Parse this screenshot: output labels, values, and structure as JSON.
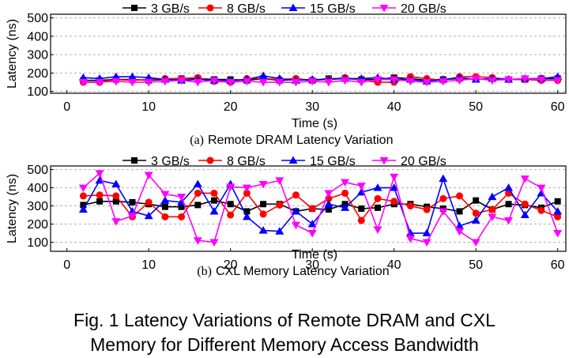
{
  "figure": {
    "caption_line1": "Fig. 1 Latency Variations of Remote DRAM and CXL",
    "caption_line2": "Memory for Different Memory Access Bandwidth"
  },
  "colors": {
    "3 GB/s": "#000000",
    "8 GB/s": "#ff0000",
    "15 GB/s": "#0000ff",
    "20 GB/s": "#ff00ff"
  },
  "markers": {
    "3 GB/s": "square",
    "8 GB/s": "circle",
    "15 GB/s": "triangle",
    "20 GB/s": "triangle-down"
  },
  "chart_data": [
    {
      "type": "line",
      "subcaption_prefix": "(a)",
      "subcaption": "Remote DRAM Latency Variation",
      "xlabel": "Time (s)",
      "ylabel": "Latency (ns)",
      "xlim": [
        -2,
        61
      ],
      "ylim": [
        90,
        520
      ],
      "xticks": [
        0,
        10,
        20,
        30,
        40,
        50,
        60
      ],
      "yticks": [
        100,
        200,
        300,
        400,
        500
      ],
      "grid": "horizontal dashed",
      "legend_position": "top",
      "x": [
        2,
        4,
        6,
        8,
        10,
        12,
        14,
        16,
        18,
        20,
        22,
        24,
        26,
        28,
        30,
        32,
        34,
        36,
        38,
        40,
        42,
        44,
        46,
        48,
        50,
        52,
        54,
        56,
        58,
        60
      ],
      "series": [
        {
          "name": "3 GB/s",
          "values": [
            160,
            160,
            165,
            165,
            160,
            165,
            170,
            170,
            165,
            165,
            160,
            170,
            160,
            165,
            160,
            170,
            170,
            165,
            165,
            175,
            170,
            160,
            165,
            170,
            165,
            170,
            165,
            165,
            170,
            170
          ]
        },
        {
          "name": "8 GB/s",
          "values": [
            150,
            150,
            165,
            160,
            165,
            170,
            170,
            175,
            155,
            150,
            170,
            170,
            165,
            170,
            160,
            165,
            175,
            160,
            150,
            150,
            180,
            170,
            160,
            180,
            180,
            175,
            165,
            165,
            160,
            160
          ]
        },
        {
          "name": "15 GB/s",
          "values": [
            175,
            170,
            180,
            180,
            175,
            165,
            160,
            165,
            160,
            160,
            165,
            185,
            170,
            160,
            165,
            165,
            170,
            170,
            175,
            165,
            165,
            155,
            165,
            175,
            165,
            170,
            165,
            170,
            170,
            180
          ]
        },
        {
          "name": "20 GB/s",
          "values": [
            150,
            150,
            155,
            150,
            150,
            155,
            160,
            150,
            160,
            150,
            155,
            150,
            150,
            150,
            155,
            150,
            160,
            150,
            165,
            165,
            155,
            150,
            155,
            160,
            170,
            160,
            165,
            170,
            165,
            160
          ]
        }
      ]
    },
    {
      "type": "line",
      "subcaption_prefix": "(b)",
      "subcaption": "CXL Memory Latency Variation",
      "xlabel": "Time (s)",
      "ylabel": "Latency (ns)",
      "xlim": [
        -2,
        61
      ],
      "ylim": [
        50,
        520
      ],
      "xticks": [
        0,
        10,
        20,
        30,
        40,
        50,
        60
      ],
      "yticks": [
        100,
        200,
        300,
        400,
        500
      ],
      "grid": "horizontal dashed",
      "legend_position": "top",
      "x": [
        2,
        4,
        6,
        8,
        10,
        12,
        14,
        16,
        18,
        20,
        22,
        24,
        26,
        28,
        30,
        32,
        34,
        36,
        38,
        40,
        42,
        44,
        46,
        48,
        50,
        52,
        54,
        56,
        58,
        60
      ],
      "series": [
        {
          "name": "3 GB/s",
          "values": [
            305,
            325,
            325,
            320,
            310,
            295,
            295,
            305,
            330,
            310,
            270,
            310,
            310,
            270,
            285,
            280,
            310,
            285,
            290,
            310,
            310,
            295,
            285,
            270,
            330,
            280,
            310,
            305,
            290,
            325
          ]
        },
        {
          "name": "8 GB/s",
          "values": [
            355,
            360,
            355,
            240,
            320,
            240,
            240,
            370,
            370,
            250,
            370,
            255,
            305,
            360,
            285,
            340,
            370,
            220,
            340,
            325,
            300,
            280,
            340,
            355,
            260,
            280,
            370,
            310,
            275,
            240
          ]
        },
        {
          "name": "15 GB/s",
          "values": [
            280,
            440,
            420,
            270,
            245,
            330,
            320,
            420,
            270,
            420,
            240,
            165,
            160,
            270,
            200,
            310,
            290,
            375,
            400,
            400,
            150,
            150,
            450,
            190,
            220,
            350,
            400,
            250,
            370,
            270
          ]
        },
        {
          "name": "20 GB/s",
          "values": [
            400,
            480,
            215,
            245,
            470,
            365,
            350,
            110,
            100,
            405,
            400,
            420,
            440,
            195,
            150,
            370,
            430,
            410,
            170,
            460,
            120,
            100,
            270,
            160,
            100,
            240,
            220,
            450,
            400,
            150
          ]
        }
      ]
    }
  ]
}
